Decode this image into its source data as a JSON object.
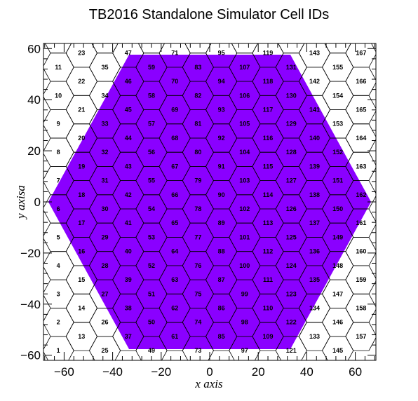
{
  "chart_data": {
    "type": "hexagonal-cell-map",
    "title": "TB2016 Standalone Simulator Cell IDs",
    "xlabel": "x axis",
    "ylabel": "y axisa",
    "xlim": [
      -68.5,
      68.5
    ],
    "ylim": [
      -62,
      62
    ],
    "xticks": [
      -60,
      -40,
      -20,
      0,
      20,
      40,
      60
    ],
    "yticks": [
      -60,
      -40,
      -20,
      0,
      20,
      40,
      60
    ],
    "xtick_labels": [
      "−60",
      "−40",
      "−20",
      "0",
      "20",
      "40",
      "60"
    ],
    "ytick_labels": [
      "−60",
      "−40",
      "−20",
      "0",
      "20",
      "40",
      "60"
    ],
    "hex_side": 6.4,
    "column_pitch": 9.6,
    "row_pitch": 11.09,
    "x_min": -62.4,
    "y_min": -58.2,
    "columns": 14,
    "rows_per_column": 12,
    "fill_region": {
      "shape": "hexagon",
      "color": "#8a00ff",
      "vertices": [
        [
          -66.5,
          0
        ],
        [
          -33.25,
          57.6
        ],
        [
          33.25,
          57.6
        ],
        [
          66.5,
          0
        ],
        [
          33.25,
          -57.6
        ],
        [
          -33.25,
          -57.6
        ]
      ]
    },
    "grid_color": "#000000",
    "id_order": "column-major, bottom to top, left to right, starting at 1"
  }
}
